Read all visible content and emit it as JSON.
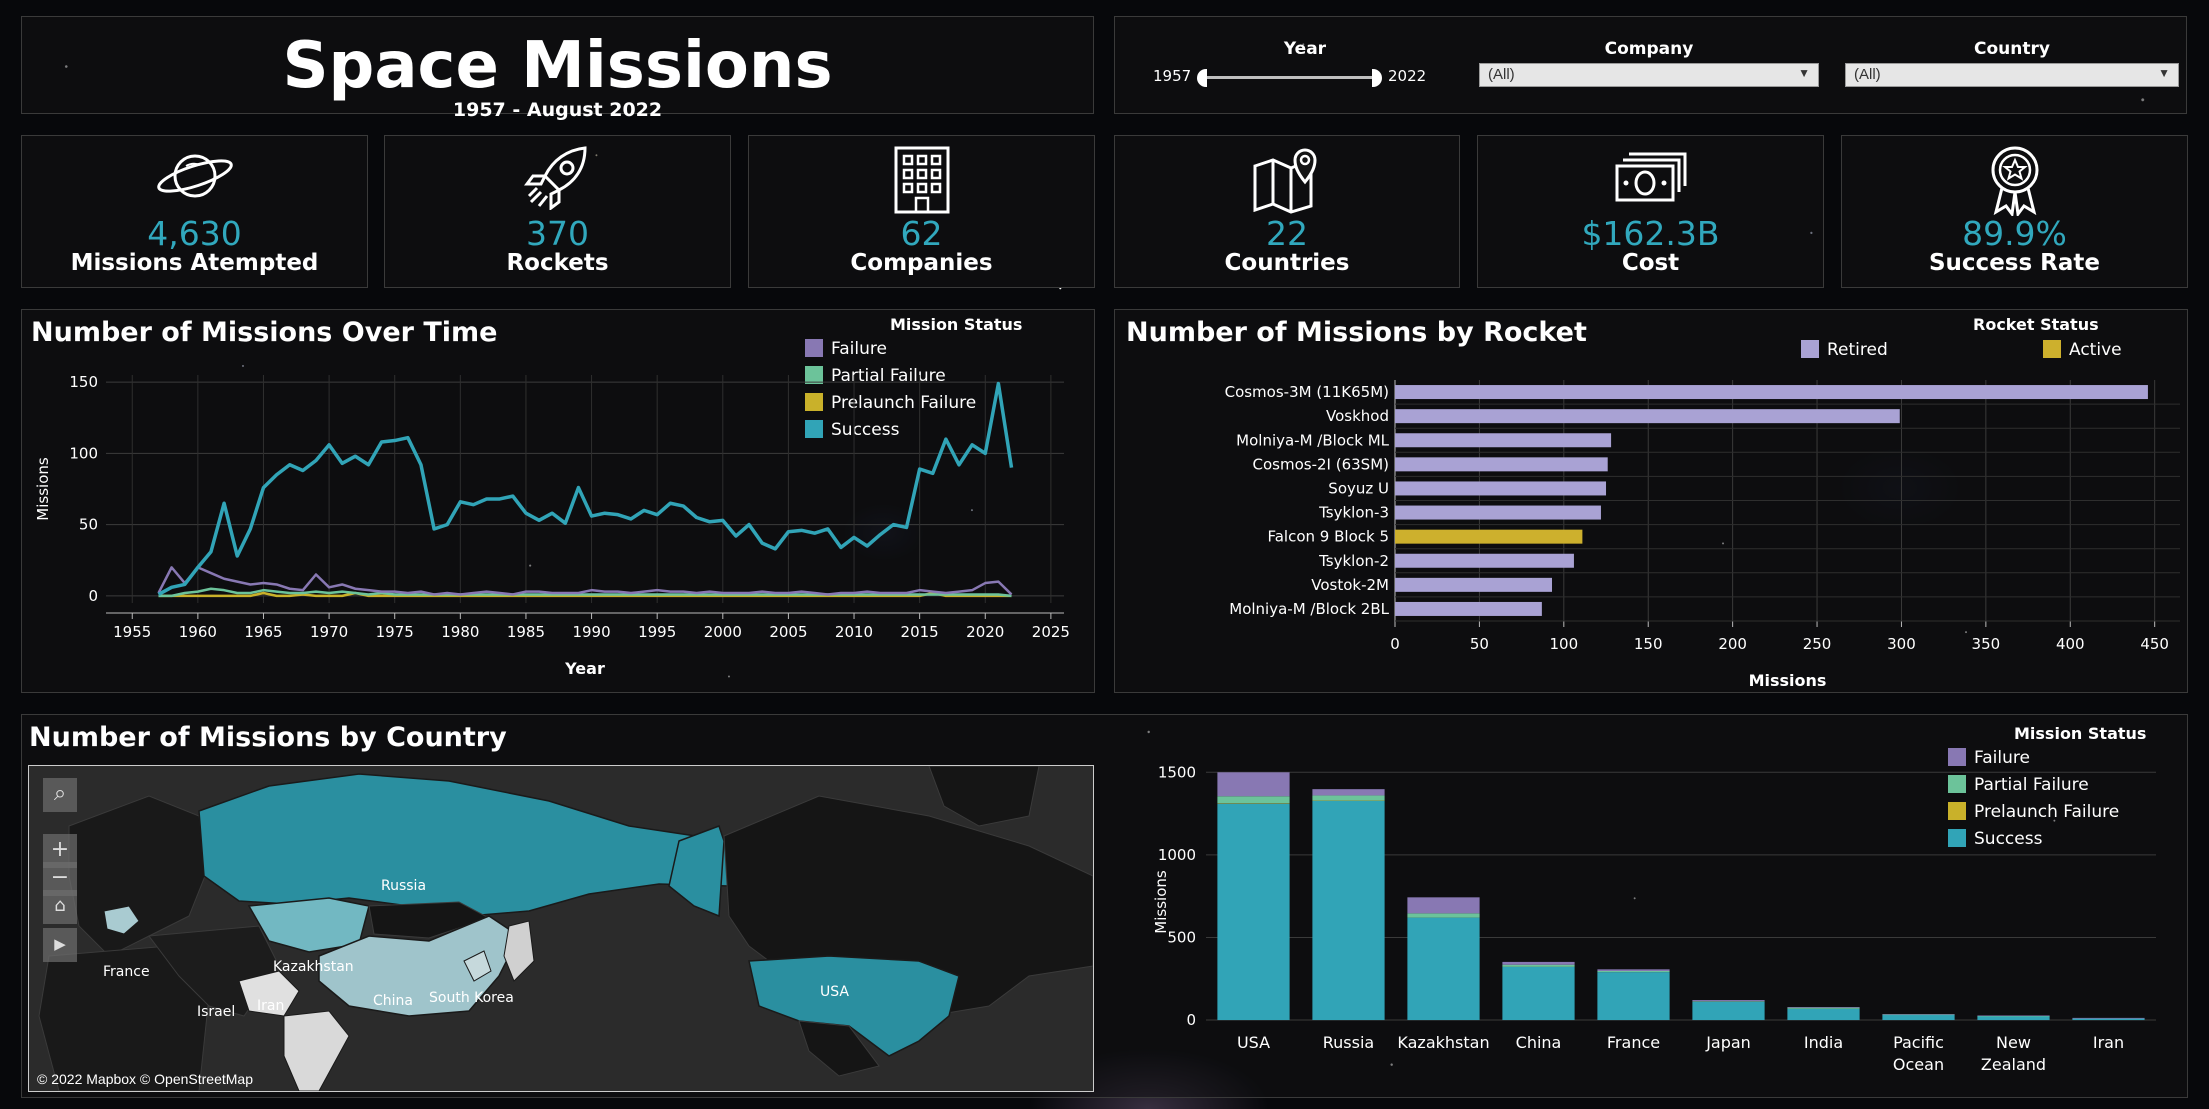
{
  "header": {
    "title": "Space Missions",
    "subtitle": "1957 - August 2022"
  },
  "filters": {
    "year": {
      "label": "Year",
      "min": "1957",
      "max": "2022"
    },
    "company": {
      "label": "Company",
      "value": "(All)"
    },
    "country": {
      "label": "Country",
      "value": "(All)"
    }
  },
  "kpis": [
    {
      "icon": "planet-icon",
      "value": "4,630",
      "label": "Missions Atempted"
    },
    {
      "icon": "rocket-icon",
      "value": "370",
      "label": "Rockets"
    },
    {
      "icon": "building-icon",
      "value": "62",
      "label": "Companies"
    },
    {
      "icon": "map-pin-icon",
      "value": "22",
      "label": "Countries"
    },
    {
      "icon": "money-icon",
      "value": "$162.3B",
      "label": "Cost"
    },
    {
      "icon": "award-icon",
      "value": "89.9%",
      "label": "Success Rate"
    }
  ],
  "colors": {
    "failure": "#8878b3",
    "partial_failure": "#6cc39a",
    "prelaunch_failure": "#c9b12a",
    "success": "#31a4b7",
    "retired": "#a9a2d4",
    "active": "#cdb02d",
    "accent": "#31a8bd"
  },
  "line_panel": {
    "title": "Number of Missions Over Time",
    "legend_title": "Mission Status",
    "legend": [
      "Failure",
      "Partial Failure",
      "Prelaunch Failure",
      "Success"
    ]
  },
  "rocket_panel": {
    "title": "Number of Missions by Rocket",
    "legend_title": "Rocket Status",
    "legend": [
      "Retired",
      "Active"
    ]
  },
  "country_panel": {
    "title": "Number of Missions by Country",
    "legend_title": "Mission Status",
    "legend": [
      "Failure",
      "Partial Failure",
      "Prelaunch Failure",
      "Success"
    ],
    "map_labels": [
      "Russia",
      "Kazakhstan",
      "France",
      "China",
      "South Korea",
      "Iran",
      "Israel",
      "USA"
    ],
    "map_attribution": "© 2022 Mapbox  © OpenStreetMap"
  },
  "chart_data": [
    {
      "type": "line",
      "title": "Number of Missions Over Time",
      "xlabel": "Year",
      "ylabel": "Missions",
      "xlim": [
        1953,
        2026
      ],
      "ylim": [
        -5,
        155
      ],
      "xticks": [
        1955,
        1960,
        1965,
        1970,
        1975,
        1980,
        1985,
        1990,
        1995,
        2000,
        2005,
        2010,
        2015,
        2020,
        2025
      ],
      "yticks": [
        0,
        50,
        100,
        150
      ],
      "x": [
        1957,
        1958,
        1959,
        1960,
        1961,
        1962,
        1963,
        1964,
        1965,
        1966,
        1967,
        1968,
        1969,
        1970,
        1971,
        1972,
        1973,
        1974,
        1975,
        1976,
        1977,
        1978,
        1979,
        1980,
        1981,
        1982,
        1983,
        1984,
        1985,
        1986,
        1987,
        1988,
        1989,
        1990,
        1991,
        1992,
        1993,
        1994,
        1995,
        1996,
        1997,
        1998,
        1999,
        2000,
        2001,
        2002,
        2003,
        2004,
        2005,
        2006,
        2007,
        2008,
        2009,
        2010,
        2011,
        2012,
        2013,
        2014,
        2015,
        2016,
        2017,
        2018,
        2019,
        2020,
        2021,
        2022
      ],
      "series": [
        {
          "name": "Success",
          "values": [
            1,
            6,
            8,
            20,
            31,
            65,
            28,
            47,
            76,
            85,
            92,
            88,
            95,
            106,
            93,
            98,
            92,
            108,
            109,
            111,
            92,
            47,
            50,
            66,
            64,
            68,
            68,
            70,
            58,
            53,
            58,
            51,
            76,
            56,
            58,
            57,
            54,
            60,
            57,
            65,
            63,
            55,
            52,
            53,
            42,
            50,
            37,
            33,
            45,
            46,
            44,
            47,
            34,
            41,
            35,
            43,
            50,
            48,
            89,
            86,
            110,
            92,
            106,
            100,
            149,
            90
          ]
        },
        {
          "name": "Failure",
          "values": [
            2,
            20,
            9,
            20,
            16,
            12,
            10,
            8,
            9,
            8,
            5,
            4,
            15,
            6,
            8,
            5,
            4,
            3,
            3,
            2,
            3,
            1,
            2,
            1,
            2,
            3,
            2,
            1,
            3,
            3,
            2,
            2,
            2,
            4,
            3,
            3,
            2,
            3,
            4,
            3,
            3,
            2,
            3,
            2,
            2,
            2,
            3,
            2,
            2,
            3,
            2,
            1,
            2,
            2,
            3,
            2,
            2,
            2,
            4,
            3,
            2,
            3,
            4,
            9,
            10,
            1
          ]
        },
        {
          "name": "Partial Failure",
          "values": [
            0,
            0,
            2,
            3,
            5,
            4,
            2,
            2,
            4,
            3,
            2,
            2,
            3,
            2,
            3,
            2,
            1,
            2,
            1,
            1,
            1,
            1,
            1,
            1,
            1,
            1,
            1,
            1,
            1,
            1,
            1,
            1,
            1,
            1,
            1,
            1,
            1,
            1,
            1,
            1,
            1,
            1,
            1,
            1,
            1,
            1,
            1,
            1,
            1,
            1,
            1,
            1,
            1,
            1,
            1,
            1,
            1,
            1,
            1,
            1,
            1,
            1,
            1,
            1,
            1,
            0
          ]
        },
        {
          "name": "Prelaunch Failure",
          "values": [
            0,
            0,
            0,
            0,
            0,
            0,
            0,
            0,
            2,
            0,
            0,
            1,
            0,
            0,
            0,
            2,
            0,
            0,
            0,
            0,
            0,
            0,
            0,
            0,
            0,
            0,
            0,
            0,
            0,
            0,
            0,
            0,
            0,
            0,
            0,
            0,
            0,
            0,
            0,
            0,
            0,
            0,
            0,
            0,
            0,
            0,
            0,
            0,
            0,
            0,
            0,
            0,
            0,
            0,
            0,
            0,
            0,
            0,
            0,
            2,
            0,
            0,
            0,
            0,
            0,
            0
          ]
        }
      ]
    },
    {
      "type": "bar",
      "orientation": "horizontal",
      "title": "Number of Missions by Rocket",
      "xlabel": "Missions",
      "xlim": [
        0,
        465
      ],
      "xticks": [
        0,
        50,
        100,
        150,
        200,
        250,
        300,
        350,
        400,
        450
      ],
      "categories": [
        "Cosmos-3M (11K65M)",
        "Voskhod",
        "Molniya-M /Block ML",
        "Cosmos-2I (63SM)",
        "Soyuz U",
        "Tsyklon-3",
        "Falcon 9 Block 5",
        "Tsyklon-2",
        "Vostok-2M",
        "Molniya-M /Block 2BL"
      ],
      "values": [
        446,
        299,
        128,
        126,
        125,
        122,
        111,
        106,
        93,
        87
      ],
      "status": [
        "Retired",
        "Retired",
        "Retired",
        "Retired",
        "Retired",
        "Retired",
        "Active",
        "Retired",
        "Retired",
        "Retired"
      ]
    },
    {
      "type": "bar",
      "stacked": true,
      "title": "Number of Missions by Country",
      "ylabel": "Missions",
      "ylim": [
        -30,
        1520
      ],
      "yticks": [
        0,
        500,
        1000,
        1500
      ],
      "categories": [
        "USA",
        "Russia",
        "Kazakhstan",
        "China",
        "France",
        "Japan",
        "India",
        "Pacific Ocean",
        "New Zealand",
        "Iran"
      ],
      "series": [
        {
          "name": "Success",
          "values": [
            1310,
            1330,
            620,
            322,
            290,
            110,
            68,
            32,
            24,
            9
          ]
        },
        {
          "name": "Prelaunch Failure",
          "values": [
            3,
            2,
            0,
            0,
            0,
            0,
            0,
            0,
            0,
            0
          ]
        },
        {
          "name": "Partial Failure",
          "values": [
            42,
            28,
            26,
            13,
            7,
            4,
            7,
            1,
            1,
            0
          ]
        },
        {
          "name": "Failure",
          "values": [
            145,
            38,
            97,
            17,
            10,
            7,
            4,
            3,
            3,
            4
          ]
        }
      ]
    }
  ]
}
